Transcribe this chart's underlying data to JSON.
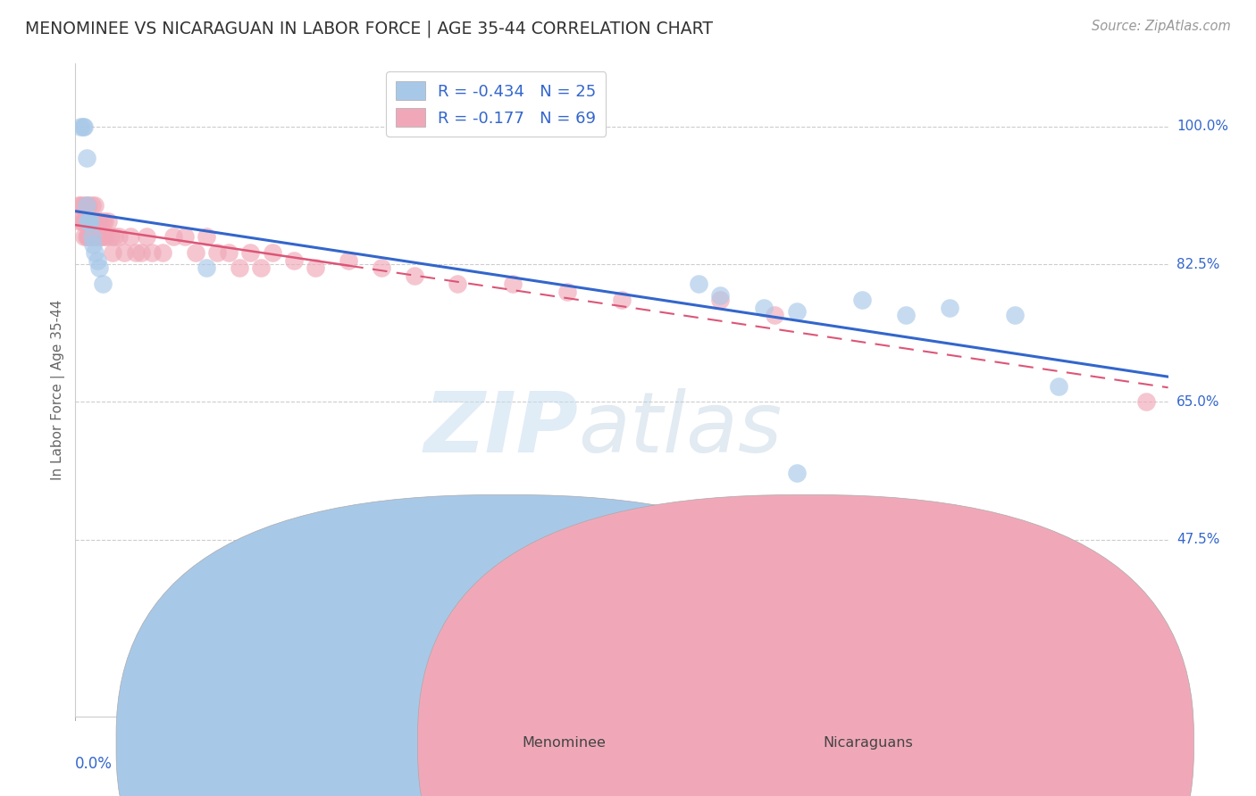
{
  "title": "MENOMINEE VS NICARAGUAN IN LABOR FORCE | AGE 35-44 CORRELATION CHART",
  "source": "Source: ZipAtlas.com",
  "ylabel": "In Labor Force | Age 35-44",
  "r_blue": -0.434,
  "n_blue": 25,
  "r_pink": -0.177,
  "n_pink": 69,
  "blue_color": "#a8c8e8",
  "pink_color": "#f0a8b8",
  "blue_line_color": "#3366cc",
  "pink_line_color": "#dd5577",
  "background_color": "#ffffff",
  "grid_color": "#cccccc",
  "ytick_vals": [
    1.0,
    0.825,
    0.65,
    0.475
  ],
  "ytick_labels": [
    "100.0%",
    "82.5%",
    "65.0%",
    "47.5%"
  ],
  "xlim": [
    0.0,
    1.0
  ],
  "ylim": [
    0.25,
    1.08
  ],
  "menominee_x": [
    0.005,
    0.007,
    0.008,
    0.01,
    0.01,
    0.011,
    0.012,
    0.014,
    0.015,
    0.016,
    0.018,
    0.02,
    0.022,
    0.025,
    0.12,
    0.57,
    0.59,
    0.63,
    0.66,
    0.72,
    0.76,
    0.8,
    0.86,
    0.9,
    0.66
  ],
  "menominee_y": [
    1.0,
    1.0,
    1.0,
    0.96,
    0.9,
    0.88,
    0.88,
    0.88,
    0.86,
    0.85,
    0.84,
    0.83,
    0.82,
    0.8,
    0.82,
    0.8,
    0.785,
    0.77,
    0.765,
    0.78,
    0.76,
    0.77,
    0.76,
    0.67,
    0.56
  ],
  "nicaraguan_x": [
    0.003,
    0.004,
    0.005,
    0.006,
    0.007,
    0.007,
    0.008,
    0.008,
    0.009,
    0.01,
    0.01,
    0.011,
    0.011,
    0.012,
    0.012,
    0.013,
    0.013,
    0.014,
    0.015,
    0.015,
    0.016,
    0.016,
    0.017,
    0.018,
    0.018,
    0.019,
    0.02,
    0.021,
    0.022,
    0.023,
    0.024,
    0.025,
    0.026,
    0.027,
    0.028,
    0.03,
    0.032,
    0.034,
    0.036,
    0.04,
    0.045,
    0.05,
    0.055,
    0.06,
    0.065,
    0.07,
    0.08,
    0.09,
    0.1,
    0.11,
    0.12,
    0.13,
    0.14,
    0.15,
    0.16,
    0.17,
    0.18,
    0.2,
    0.22,
    0.25,
    0.28,
    0.31,
    0.35,
    0.4,
    0.45,
    0.5,
    0.59,
    0.64,
    0.98
  ],
  "nicaraguan_y": [
    0.9,
    0.88,
    0.9,
    0.88,
    0.88,
    0.9,
    0.88,
    0.86,
    0.88,
    0.9,
    0.86,
    0.88,
    0.86,
    0.9,
    0.86,
    0.88,
    0.86,
    0.88,
    0.9,
    0.86,
    0.88,
    0.86,
    0.88,
    0.9,
    0.86,
    0.88,
    0.86,
    0.88,
    0.86,
    0.88,
    0.86,
    0.88,
    0.86,
    0.88,
    0.86,
    0.88,
    0.86,
    0.84,
    0.86,
    0.86,
    0.84,
    0.86,
    0.84,
    0.84,
    0.86,
    0.84,
    0.84,
    0.86,
    0.86,
    0.84,
    0.86,
    0.84,
    0.84,
    0.82,
    0.84,
    0.82,
    0.84,
    0.83,
    0.82,
    0.83,
    0.82,
    0.81,
    0.8,
    0.8,
    0.79,
    0.78,
    0.78,
    0.76,
    0.65
  ]
}
